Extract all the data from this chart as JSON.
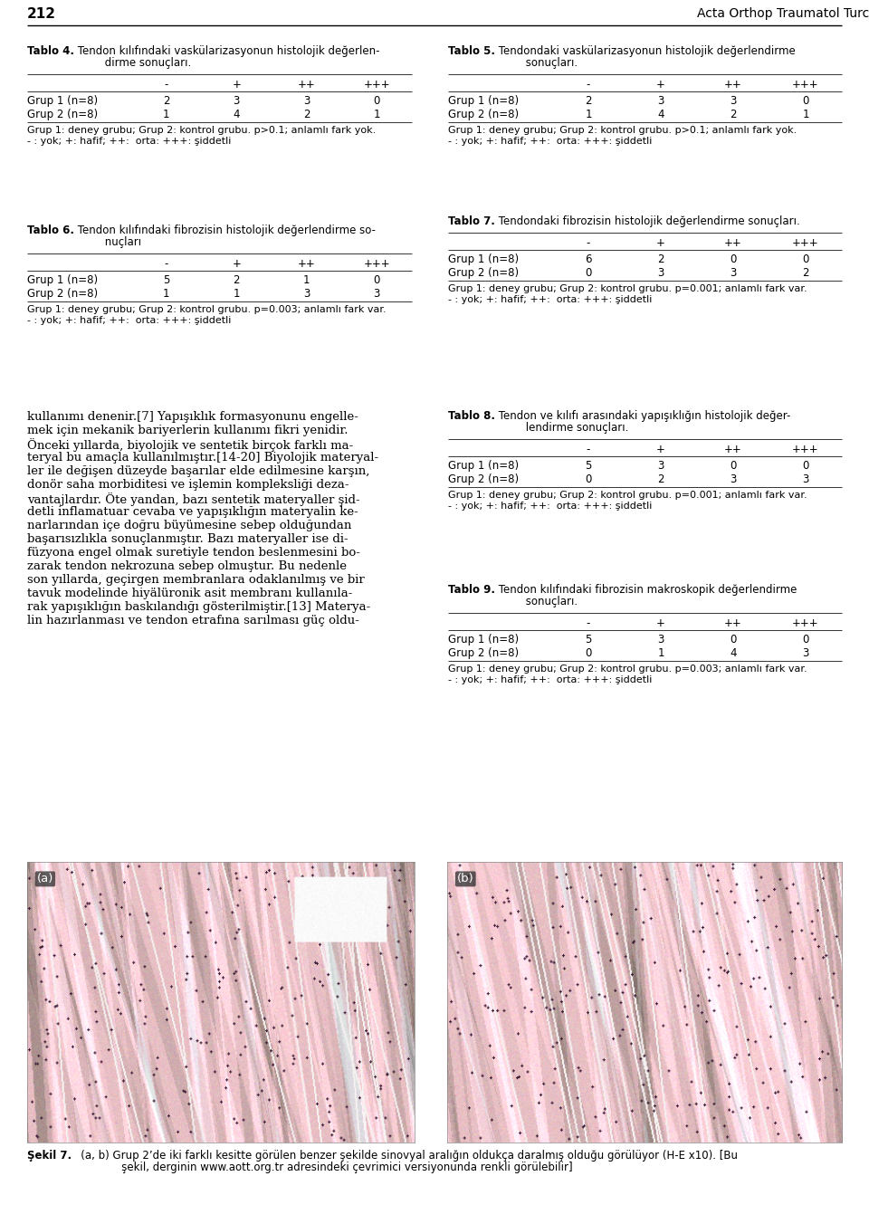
{
  "page_number": "212",
  "journal_name": "Acta Orthop Traumatol Turc",
  "background_color": "#ffffff",
  "text_color": "#000000",
  "tablo4": {
    "title_bold": "Tablo 4.",
    "title_rest1": " Tendon kılıfındaki vaskülarizasyonun histolojik değerlen-",
    "title_rest2": "         dirme sonuçları.",
    "cols": [
      "-",
      "+",
      "++",
      "+++"
    ],
    "rows": [
      [
        "Grup 1 (n=8)",
        "2",
        "3",
        "3",
        "0"
      ],
      [
        "Grup 2 (n=8)",
        "1",
        "4",
        "2",
        "1"
      ]
    ],
    "note1": "Grup 1: deney grubu; Grup 2: kontrol grubu. p>0.1; anlamlı fark yok.",
    "note2": "- : yok; +: hafif; ++:  orta: +++: şiddetli"
  },
  "tablo5": {
    "title_bold": "Tablo 5.",
    "title_rest1": " Tendondaki vaskülarizasyonun histolojik değerlendirme",
    "title_rest2": "         sonuçları.",
    "cols": [
      "-",
      "+",
      "++",
      "+++"
    ],
    "rows": [
      [
        "Grup 1 (n=8)",
        "2",
        "3",
        "3",
        "0"
      ],
      [
        "Grup 2 (n=8)",
        "1",
        "4",
        "2",
        "1"
      ]
    ],
    "note1": "Grup 1: deney grubu; Grup 2: kontrol grubu. p>0.1; anlamlı fark yok.",
    "note2": "- : yok; +: hafif; ++:  orta: +++: şiddetli"
  },
  "tablo6": {
    "title_bold": "Tablo 6.",
    "title_rest1": " Tendon kılıfındaki fibrozisin histolojik değerlendirme so-",
    "title_rest2": "         nuçları",
    "cols": [
      "-",
      "+",
      "++",
      "+++"
    ],
    "rows": [
      [
        "Grup 1 (n=8)",
        "5",
        "2",
        "1",
        "0"
      ],
      [
        "Grup 2 (n=8)",
        "1",
        "1",
        "3",
        "3"
      ]
    ],
    "note1": "Grup 1: deney grubu; Grup 2: kontrol grubu. p=0.003; anlamlı fark var.",
    "note2": "- : yok; +: hafif; ++:  orta: +++: şiddetli"
  },
  "tablo7": {
    "title_bold": "Tablo 7.",
    "title_rest1": " Tendondaki fibrozisin histolojik değerlendirme sonuçları.",
    "title_rest2": "",
    "cols": [
      "-",
      "+",
      "++",
      "+++"
    ],
    "rows": [
      [
        "Grup 1 (n=8)",
        "6",
        "2",
        "0",
        "0"
      ],
      [
        "Grup 2 (n=8)",
        "0",
        "3",
        "3",
        "2"
      ]
    ],
    "note1": "Grup 1: deney grubu; Grup 2: kontrol grubu. p=0.001; anlamlı fark var.",
    "note2": "- : yok; +: hafif; ++:  orta: +++: şiddetli"
  },
  "tablo8": {
    "title_bold": "Tablo 8.",
    "title_rest1": " Tendon ve kılıfı arasındaki yapışıklığın histolojik değer-",
    "title_rest2": "         lendirme sonuçları.",
    "cols": [
      "-",
      "+",
      "++",
      "+++"
    ],
    "rows": [
      [
        "Grup 1 (n=8)",
        "5",
        "3",
        "0",
        "0"
      ],
      [
        "Grup 2 (n=8)",
        "0",
        "2",
        "3",
        "3"
      ]
    ],
    "note1": "Grup 1: deney grubu; Grup 2: kontrol grubu. p=0.001; anlamlı fark var.",
    "note2": "- : yok; +: hafif; ++:  orta: +++: şiddetli"
  },
  "tablo9": {
    "title_bold": "Tablo 9.",
    "title_rest1": " Tendon kılıfındaki fibrozisin makroskopik değerlendirme",
    "title_rest2": "         sonuçları.",
    "cols": [
      "-",
      "+",
      "++",
      "+++"
    ],
    "rows": [
      [
        "Grup 1 (n=8)",
        "5",
        "3",
        "0",
        "0"
      ],
      [
        "Grup 2 (n=8)",
        "0",
        "1",
        "4",
        "3"
      ]
    ],
    "note1": "Grup 1: deney grubu; Grup 2: kontrol grubu. p=0.003; anlamlı fark var.",
    "note2": "- : yok; +: hafif; ++:  orta: +++: şiddetli"
  },
  "body_text_lines": [
    "kullanımı denenir.[7] Yapışıklık formasyonunu engelle-",
    "mek için mekanik bariyerlerin kullanımı fikri yenidir.",
    "Önceki yıllarda, biyolojik ve sentetik birçok farklı ma-",
    "teryal bu amaçla kullanılmıştır.[14-20] Biyolojik materyal-",
    "ler ile değişen düzeyde başarılar elde edilmesine karşın,",
    "donör saha morbiditesi ve işlemin kompleksliği deza-",
    "vantajlardır. Öte yandan, bazı sentetik materyaller şid-",
    "detli inflamatuar cevaba ve yapışıklığın materyalin ke-",
    "narlarından içe doğru büyümesine sebep olduğundan",
    "başarısızlıkla sonuçlanmıştır. Bazı materyaller ise di-",
    "füzyona engel olmak suretiyle tendon beslenmesini bo-",
    "zarak tendon nekrozuna sebep olmuştur. Bu nedenle",
    "son yıllarda, geçirgen membranlara odaklanılmış ve bir",
    "tavuk modelinde hiyälüronik asit membranı kullanıla-",
    "rak yapışıklığın baskılandığı gösterilmiştir.[13] Materya-",
    "lin hazırlanması ve tendon etrafına sarılması güç oldu-"
  ],
  "sekil_bold": "Şekil 7.",
  "sekil_caption1": "   (a, b) Grup 2’de iki farklı kesitte görülen benzer şekilde sinovyal aralığın oldukça daralmış olduğu görülüyor (H-E x10). [Bu",
  "sekil_caption2": "               şekil, derginin www.aott.org.tr adresindeki çevrimici versiyonunda renkli görülebilir]"
}
